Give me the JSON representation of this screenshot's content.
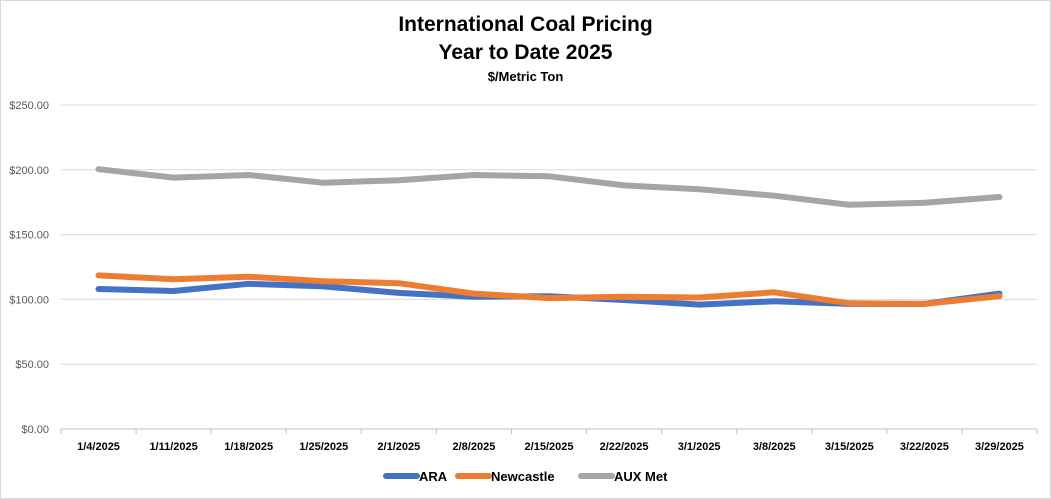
{
  "chart_data": {
    "type": "line",
    "title": "International Coal Pricing",
    "subtitle": "Year to Date 2025",
    "unit_label": "$/Metric Ton",
    "x": [
      "1/4/2025",
      "1/11/2025",
      "1/18/2025",
      "1/25/2025",
      "2/1/2025",
      "2/8/2025",
      "2/15/2025",
      "2/22/2025",
      "3/1/2025",
      "3/8/2025",
      "3/15/2025",
      "3/22/2025",
      "3/29/2025"
    ],
    "ylim": [
      0,
      250
    ],
    "yticks": [
      0,
      50,
      100,
      150,
      200,
      250
    ],
    "ytick_labels": [
      "$0.00",
      "$50.00",
      "$100.00",
      "$150.00",
      "$200.00",
      "$250.00"
    ],
    "grid": true,
    "legend_position": "bottom",
    "series": [
      {
        "name": "ARA",
        "color": "#4472C4",
        "values": [
          108,
          106.5,
          112,
          110,
          105,
          102,
          102.5,
          99.5,
          96,
          98.5,
          96.5,
          96.5,
          104.5
        ]
      },
      {
        "name": "Newcastle",
        "color": "#ED7D31",
        "values": [
          118.5,
          115.5,
          117.5,
          114,
          112.5,
          104.5,
          101,
          102,
          101.5,
          105.5,
          97,
          96.5,
          102.5
        ]
      },
      {
        "name": "AUX Met",
        "color": "#A5A5A5",
        "values": [
          200.5,
          194,
          196,
          190,
          192,
          196,
          195,
          188,
          185,
          180,
          173,
          174.5,
          179
        ]
      }
    ]
  }
}
